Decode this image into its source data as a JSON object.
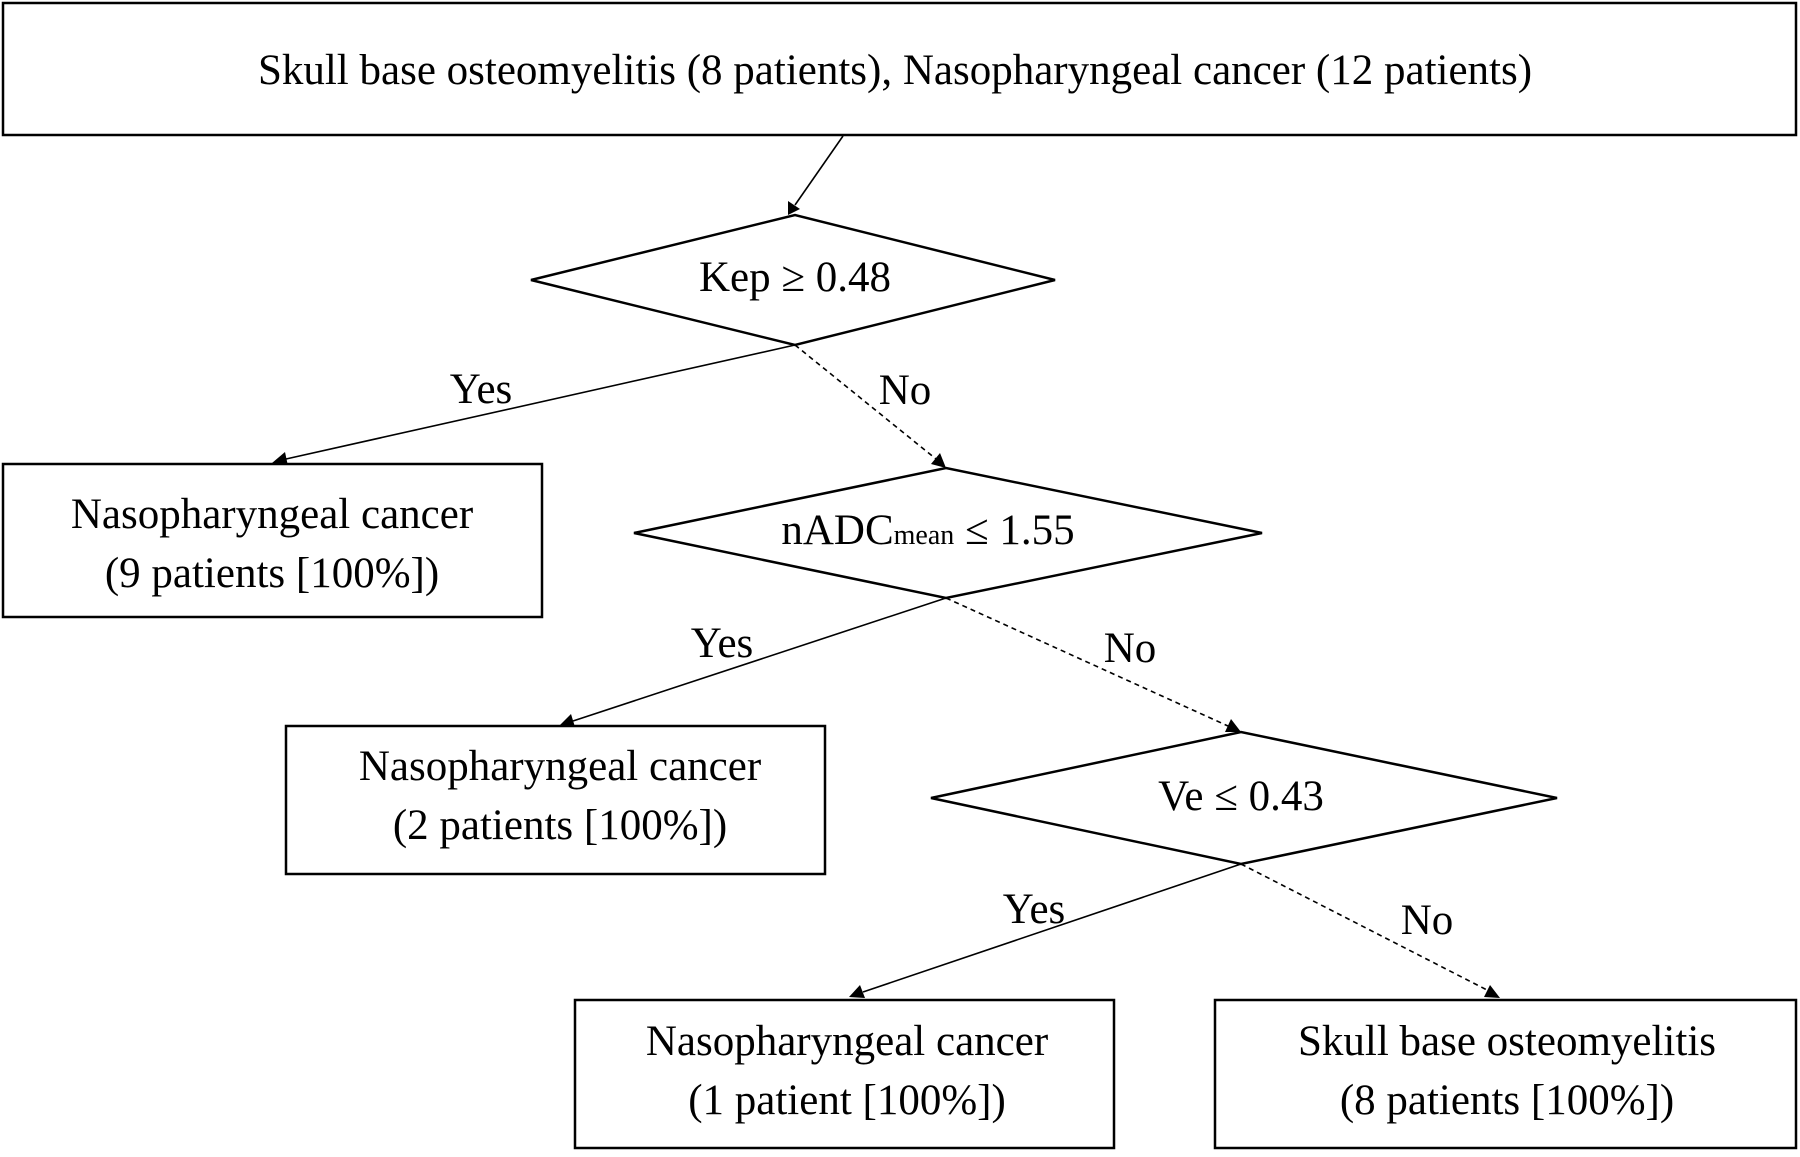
{
  "root": {
    "label": "Skull base osteomyelitis (8 patients), Nasopharyngeal cancer (12 patients)"
  },
  "decisions": [
    {
      "id": "kep",
      "label": "Kep ≥ 0.48"
    },
    {
      "id": "nadc",
      "label_main": "nADC",
      "label_sub": "mean",
      "label_tail": " ≤ 1.55"
    },
    {
      "id": "ve",
      "label": "Ve ≤ 0.43"
    }
  ],
  "branches": {
    "yes": "Yes",
    "no": "No"
  },
  "outcomes": [
    {
      "id": "npc-9",
      "line1": "Nasopharyngeal cancer",
      "line2": "(9 patients [100%])"
    },
    {
      "id": "npc-2",
      "line1": "Nasopharyngeal cancer",
      "line2": "(2 patients [100%])"
    },
    {
      "id": "npc-1",
      "line1": "Nasopharyngeal cancer",
      "line2": "(1 patient [100%])"
    },
    {
      "id": "sbo-8",
      "line1": "Skull base osteomyelitis",
      "line2": "(8 patients [100%])"
    }
  ]
}
